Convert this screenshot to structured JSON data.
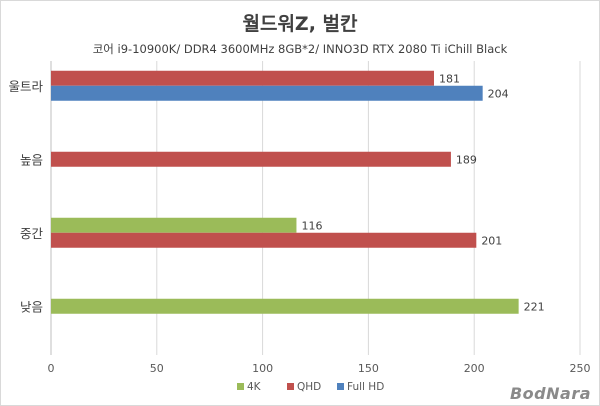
{
  "chart_data": {
    "type": "bar",
    "orientation": "horizontal",
    "title": "월드워Z, 벌칸",
    "subtitle": "코어 i9-10900K/ DDR4 3600MHz 8GB*2/ INNO3D RTX 2080 Ti iChill Black",
    "categories": [
      "울트라",
      "높음",
      "중간",
      "낮음"
    ],
    "series": [
      {
        "name": "4K",
        "color": "#9bbb59",
        "values": [
          null,
          null,
          116,
          221
        ]
      },
      {
        "name": "QHD",
        "color": "#c0504d",
        "values": [
          181,
          189,
          201,
          null
        ]
      },
      {
        "name": "Full HD",
        "color": "#4f81bd",
        "values": [
          204,
          null,
          null,
          null
        ]
      }
    ],
    "xlim": [
      0,
      250
    ],
    "xticks": [
      0,
      50,
      100,
      150,
      200,
      250
    ],
    "grid": "vertical",
    "legend": "bottom"
  },
  "watermark": "BodNara"
}
